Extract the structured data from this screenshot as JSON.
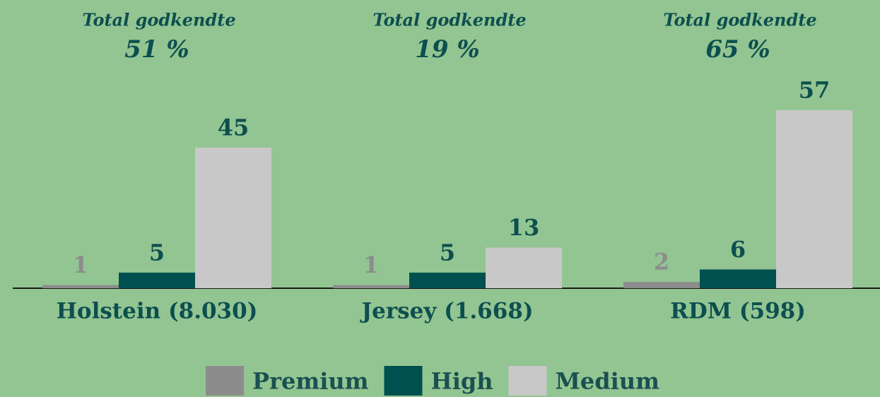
{
  "chart_data": {
    "type": "bar",
    "categories": [
      "Holstein (8.030)",
      "Jersey (1.668)",
      "RDM (598)"
    ],
    "series": [
      {
        "name": "Premium",
        "color": "#8c8c8c",
        "values": [
          1,
          1,
          2
        ]
      },
      {
        "name": "High",
        "color": "#005050",
        "values": [
          5,
          5,
          6
        ]
      },
      {
        "name": "Medium",
        "color": "#c8c8c8",
        "values": [
          45,
          13,
          57
        ]
      }
    ],
    "annotations": [
      {
        "title": "Total godkendte",
        "label": "51 %"
      },
      {
        "title": "Total godkendte",
        "label": "19 %"
      },
      {
        "title": "Total godkendte",
        "label": "65 %"
      }
    ],
    "ylim": [
      0,
      90
    ],
    "legend": "bottom"
  }
}
